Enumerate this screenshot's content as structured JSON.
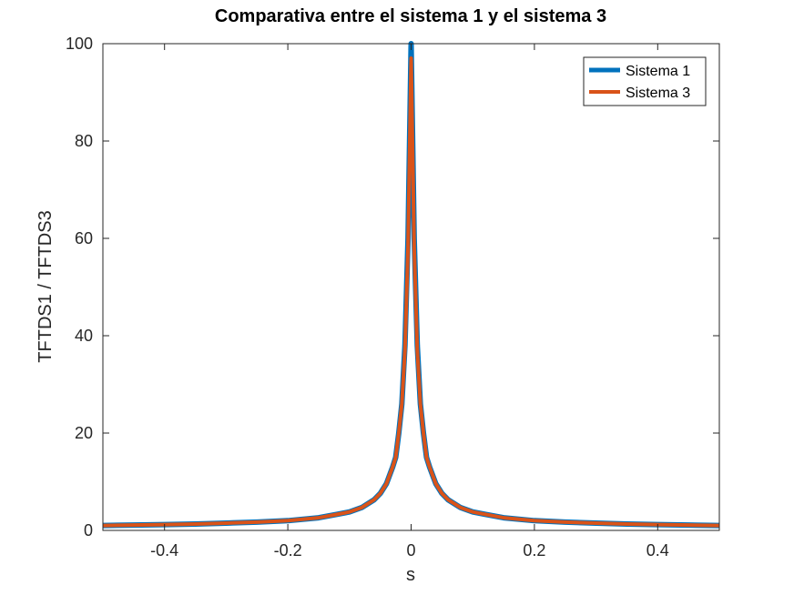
{
  "chart_data": {
    "type": "line",
    "title": "Comparativa entre el sistema 1 y el sistema 3",
    "xlabel": "s",
    "ylabel": "TFTDS1 / TFTDS3",
    "xlim": [
      -0.5,
      0.5
    ],
    "ylim": [
      0,
      100
    ],
    "xticks": [
      -0.4,
      -0.2,
      0,
      0.2,
      0.4
    ],
    "xtick_labels": [
      "-0.4",
      "-0.2",
      "0",
      "0.2",
      "0.4"
    ],
    "yticks": [
      0,
      20,
      40,
      60,
      80,
      100
    ],
    "ytick_labels": [
      "0",
      "20",
      "40",
      "60",
      "80",
      "100"
    ],
    "grid": false,
    "legend_position": "top-right",
    "series": [
      {
        "name": "Sistema 1",
        "color": "#0072BD",
        "x": [
          -0.5,
          -0.45,
          -0.4,
          -0.35,
          -0.3,
          -0.25,
          -0.2,
          -0.15,
          -0.12,
          -0.1,
          -0.08,
          -0.06,
          -0.05,
          -0.04,
          -0.03,
          -0.025,
          -0.02,
          -0.015,
          -0.01,
          -0.005,
          0,
          0.005,
          0.01,
          0.015,
          0.02,
          0.025,
          0.03,
          0.04,
          0.05,
          0.06,
          0.08,
          0.1,
          0.12,
          0.15,
          0.2,
          0.25,
          0.3,
          0.35,
          0.4,
          0.45,
          0.5
        ],
        "y": [
          1.0,
          1.1,
          1.2,
          1.3,
          1.5,
          1.7,
          2.0,
          2.6,
          3.3,
          3.8,
          4.7,
          6.3,
          7.6,
          9.6,
          13,
          15,
          20,
          26,
          38,
          60,
          100,
          60,
          38,
          26,
          20,
          15,
          13,
          9.6,
          7.6,
          6.3,
          4.7,
          3.8,
          3.3,
          2.6,
          2.0,
          1.7,
          1.5,
          1.3,
          1.2,
          1.1,
          1.0
        ]
      },
      {
        "name": "Sistema 3",
        "color": "#D95319",
        "x": [
          -0.5,
          -0.45,
          -0.4,
          -0.35,
          -0.3,
          -0.25,
          -0.2,
          -0.15,
          -0.12,
          -0.1,
          -0.08,
          -0.06,
          -0.05,
          -0.04,
          -0.03,
          -0.025,
          -0.02,
          -0.015,
          -0.01,
          -0.005,
          0,
          0.005,
          0.01,
          0.015,
          0.02,
          0.025,
          0.03,
          0.04,
          0.05,
          0.06,
          0.08,
          0.1,
          0.12,
          0.15,
          0.2,
          0.25,
          0.3,
          0.35,
          0.4,
          0.45,
          0.5
        ],
        "y": [
          1.0,
          1.1,
          1.2,
          1.3,
          1.5,
          1.7,
          2.0,
          2.6,
          3.3,
          3.8,
          4.7,
          6.3,
          7.6,
          9.6,
          13,
          15,
          20,
          26,
          37,
          58,
          97,
          58,
          37,
          26,
          20,
          15,
          13,
          9.6,
          7.6,
          6.3,
          4.7,
          3.8,
          3.3,
          2.6,
          2.0,
          1.7,
          1.5,
          1.3,
          1.2,
          1.1,
          1.0
        ]
      }
    ]
  }
}
